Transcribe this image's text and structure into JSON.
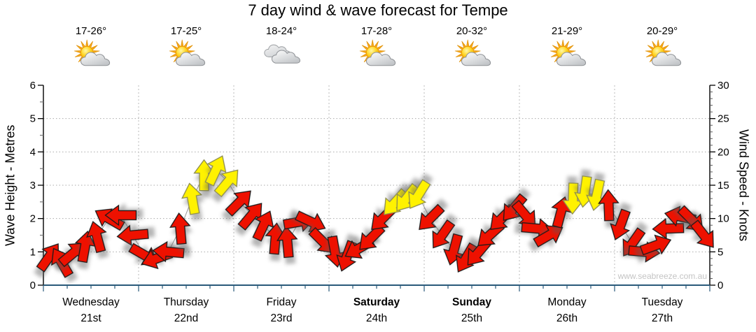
{
  "title": "7 day wind & wave forecast for Tempe",
  "watermark": "www.seabreeze.com.au",
  "colors": {
    "arrow_red": "#ee1100",
    "arrow_red_outline": "#1a1a1a",
    "arrow_yellow": "#fff200",
    "arrow_yellow_outline": "#8c8c50",
    "connect_line": "#999999",
    "x_axis": "#2a5a7a",
    "y_axis": "#000000",
    "grid": "#aaaaaa",
    "day_text": "#1a1a1a",
    "date_text": "#999999"
  },
  "chart_data": {
    "type": "wind-arrow-timeseries",
    "title": "7 day wind & wave forecast for Tempe",
    "left_axis": {
      "label": "Wave Height - Metres",
      "min": 0,
      "max": 6,
      "major_step": 1,
      "minor_step": 0.5
    },
    "right_axis": {
      "label": "Wind Speed - Knots",
      "min": 0,
      "max": 30,
      "major_step": 5,
      "minor_step": 1
    },
    "grid": "dotted horizontal at 1-5 m, dotted vertical at day boundaries",
    "points_per_day": 8,
    "days": [
      {
        "name": "Wednesday",
        "date": "21st",
        "temp": "17-26°",
        "icon": "partly-cloudy",
        "weekend": false
      },
      {
        "name": "Thursday",
        "date": "22nd",
        "temp": "17-25°",
        "icon": "partly-cloudy",
        "weekend": false
      },
      {
        "name": "Friday",
        "date": "23rd",
        "temp": "18-24°",
        "icon": "cloudy",
        "weekend": false
      },
      {
        "name": "Saturday",
        "date": "24th",
        "temp": "17-28°",
        "icon": "partly-cloudy",
        "weekend": true
      },
      {
        "name": "Sunday",
        "date": "25th",
        "temp": "20-32°",
        "icon": "partly-cloudy",
        "weekend": true
      },
      {
        "name": "Monday",
        "date": "26th",
        "temp": "21-29°",
        "icon": "partly-cloudy",
        "weekend": false
      },
      {
        "name": "Tuesday",
        "date": "27th",
        "temp": "20-29°",
        "icon": "partly-cloudy",
        "weekend": false
      }
    ],
    "series": {
      "wind_speed_knots": [
        4.3,
        3.5,
        4.8,
        5.8,
        7.3,
        10.0,
        10.5,
        7.5,
        4.5,
        4.0,
        5.0,
        8.5,
        13.0,
        16.5,
        17.3,
        15.5,
        12.5,
        10.5,
        9.0,
        7.0,
        6.5,
        9.5,
        9.5,
        6.5,
        5.0,
        4.3,
        5.5,
        7.0,
        10.0,
        12.3,
        13.0,
        13.5,
        10.0,
        7.5,
        5.3,
        4.0,
        4.8,
        7.5,
        10.0,
        11.5,
        10.5,
        8.5,
        7.5,
        11.0,
        13.0,
        14.0,
        13.5,
        12.0,
        9.0,
        6.3,
        5.0,
        6.0,
        8.5,
        10.3,
        9.8,
        7.5
      ],
      "wave_height_m": [
        0.86,
        0.7,
        0.96,
        1.16,
        1.46,
        2.0,
        2.1,
        1.5,
        0.9,
        0.8,
        1.0,
        1.7,
        2.6,
        3.3,
        3.46,
        3.1,
        2.5,
        2.1,
        1.8,
        1.4,
        1.3,
        1.9,
        1.9,
        1.3,
        1.0,
        0.86,
        1.1,
        1.4,
        2.0,
        2.46,
        2.6,
        2.7,
        2.0,
        1.5,
        1.06,
        0.8,
        0.96,
        1.5,
        2.0,
        2.3,
        2.1,
        1.7,
        1.5,
        2.2,
        2.6,
        2.8,
        2.7,
        2.4,
        1.8,
        1.26,
        1.0,
        1.2,
        1.7,
        2.06,
        1.96,
        1.5
      ],
      "arrow_direction_deg": [
        35,
        330,
        50,
        10,
        345,
        300,
        270,
        265,
        120,
        250,
        275,
        355,
        350,
        0,
        25,
        40,
        45,
        40,
        25,
        5,
        355,
        80,
        115,
        135,
        170,
        200,
        240,
        225,
        225,
        222,
        218,
        212,
        225,
        215,
        195,
        210,
        220,
        228,
        225,
        220,
        140,
        95,
        60,
        15,
        182,
        188,
        192,
        358,
        200,
        215,
        95,
        70,
        268,
        282,
        135,
        142
      ],
      "arrow_color": [
        "r",
        "r",
        "r",
        "r",
        "r",
        "r",
        "r",
        "r",
        "r",
        "r",
        "r",
        "r",
        "y",
        "y",
        "y",
        "y",
        "r",
        "r",
        "r",
        "r",
        "r",
        "r",
        "r",
        "r",
        "r",
        "r",
        "r",
        "r",
        "r",
        "y",
        "y",
        "y",
        "r",
        "r",
        "r",
        "r",
        "r",
        "r",
        "r",
        "r",
        "r",
        "r",
        "r",
        "r",
        "y",
        "y",
        "y",
        "r",
        "r",
        "r",
        "r",
        "r",
        "r",
        "r",
        "r",
        "r"
      ]
    }
  }
}
